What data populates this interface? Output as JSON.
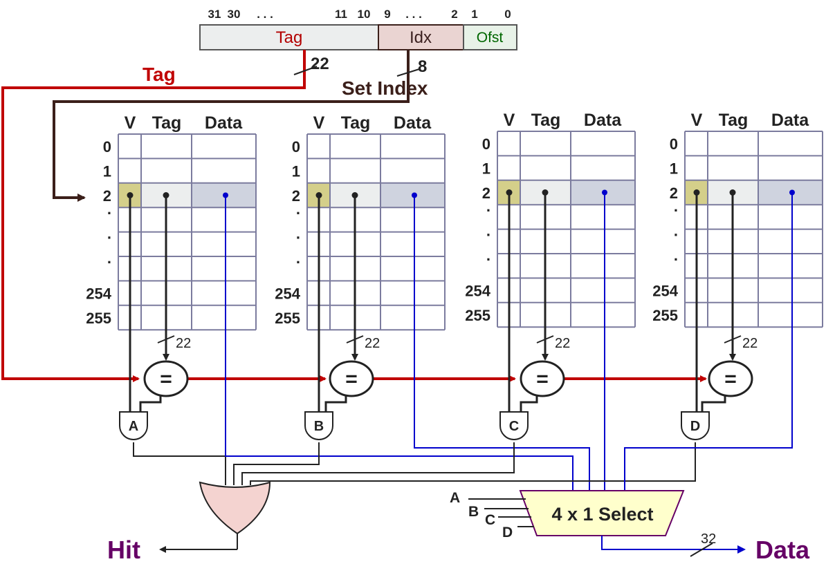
{
  "address": {
    "bit_labels": [
      "31",
      "30",
      ". . .",
      "11",
      "10",
      "9",
      ". . .",
      "2",
      "1",
      "0"
    ],
    "fields": [
      {
        "name": "Tag",
        "color": "#b30000",
        "fill": "#eceeee"
      },
      {
        "name": "Idx",
        "color": "#3b2020",
        "fill": "#ead4d2"
      },
      {
        "name": "Ofst",
        "color": "#006600",
        "fill": "#e8f2e8"
      }
    ]
  },
  "tag_bus": {
    "label": "Tag",
    "width": "22",
    "color": "#c00000"
  },
  "index_bus": {
    "label": "Set Index",
    "width": "8",
    "color": "#3b1f1a"
  },
  "ways": [
    {
      "gate": "A",
      "compare": "=",
      "tag_width": "22"
    },
    {
      "gate": "B",
      "compare": "=",
      "tag_width": "22"
    },
    {
      "gate": "C",
      "compare": "=",
      "tag_width": "22"
    },
    {
      "gate": "D",
      "compare": "=",
      "tag_width": "22"
    }
  ],
  "table": {
    "headers": [
      "V",
      "Tag",
      "Data"
    ],
    "row_labels": [
      "0",
      "1",
      "2",
      ".",
      ".",
      ".",
      "254",
      "255"
    ]
  },
  "mux": {
    "label": "4 x 1 Select",
    "inputs": [
      "A",
      "B",
      "C",
      "D"
    ],
    "fill": "#ffffcc"
  },
  "outputs": {
    "hit": "Hit",
    "data": "Data",
    "data_width": "32",
    "color": "#660066"
  },
  "colors": {
    "valid_cell": "#d4cf8a",
    "tag_cell": "#eceeee",
    "data_cell": "#cfd3df",
    "grid": "#7b7b9e",
    "data_wire": "#0000cc"
  }
}
